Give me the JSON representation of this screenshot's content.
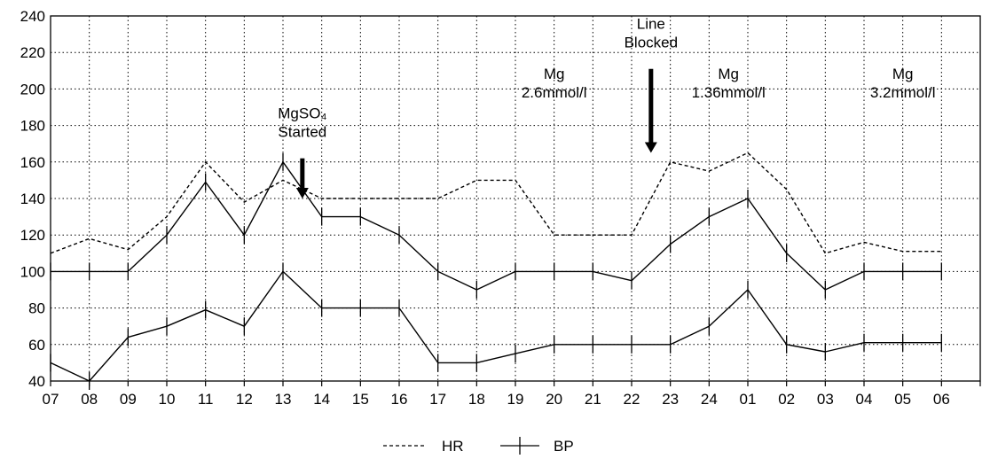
{
  "chart_data": {
    "type": "line",
    "categories": [
      "07",
      "08",
      "09",
      "10",
      "11",
      "12",
      "13",
      "14",
      "15",
      "16",
      "17",
      "18",
      "19",
      "20",
      "21",
      "22",
      "23",
      "24",
      "01",
      "02",
      "03",
      "04",
      "05",
      "06"
    ],
    "ylim": [
      40,
      240
    ],
    "y_ticks": [
      "40",
      "60",
      "80",
      "100",
      "120",
      "140",
      "160",
      "180",
      "200",
      "220",
      "240"
    ],
    "grid": true,
    "legend_position": "bottom-center",
    "series": [
      {
        "name": "HR",
        "style": "dashed",
        "x": [
          "07",
          "08",
          "09",
          "10",
          "11",
          "12",
          "13",
          "14",
          "15",
          "16",
          "17",
          "18",
          "19",
          "20",
          "21",
          "22",
          "23",
          "24",
          "01",
          "02",
          "03",
          "04",
          "05",
          "06"
        ],
        "values": [
          110,
          118,
          112,
          130,
          160,
          138,
          150,
          140,
          140,
          140,
          140,
          150,
          150,
          120,
          120,
          120,
          160,
          155,
          165,
          145,
          110,
          116,
          111,
          111
        ]
      },
      {
        "name": "BP",
        "style": "solid-with-crossbars",
        "x": [
          "07",
          "08",
          "09",
          "10",
          "11",
          "12",
          "13",
          "14",
          "15",
          "16",
          "17",
          "18",
          "19",
          "20",
          "21",
          "22",
          "23",
          "24",
          "01",
          "02",
          "03",
          "04",
          "05",
          "06"
        ],
        "values": [
          100,
          100,
          100,
          120,
          149,
          120,
          160,
          130,
          130,
          120,
          100,
          90,
          100,
          100,
          100,
          95,
          115,
          130,
          140,
          110,
          90,
          100,
          100,
          100
        ]
      },
      {
        "name": "BP",
        "style": "solid-with-crossbars",
        "x": [
          "07",
          "08",
          "09",
          "10",
          "11",
          "12",
          "13",
          "14",
          "15",
          "16",
          "17",
          "18",
          "19",
          "20",
          "21",
          "22",
          "23",
          "24",
          "01",
          "02",
          "03",
          "04",
          "05",
          "06"
        ],
        "values": [
          50,
          40,
          64,
          70,
          79,
          70,
          100,
          80,
          80,
          80,
          50,
          50,
          55,
          60,
          60,
          60,
          60,
          70,
          90,
          60,
          56,
          61,
          61,
          61
        ]
      }
    ],
    "annotations": [
      {
        "lines": [
          "MgSO₄",
          "Started"
        ],
        "x": "13",
        "x_offset": 0.5,
        "arrow": true,
        "arrow_from_y": 162,
        "arrow_to_y": 140
      },
      {
        "lines": [
          "Mg",
          "2.6mmol/l"
        ],
        "x": "20",
        "x_offset": 0.0,
        "arrow": false
      },
      {
        "lines": [
          "Line",
          "Blocked"
        ],
        "x": "22",
        "x_offset": 0.5,
        "arrow": true,
        "arrow_from_y": 211,
        "arrow_to_y": 165
      },
      {
        "lines": [
          "Mg",
          "1.36mmol/l"
        ],
        "x": "24",
        "x_offset": 0.5,
        "arrow": false
      },
      {
        "lines": [
          "Mg",
          "3.2mmol/l"
        ],
        "x": "05",
        "x_offset": 0.0,
        "arrow": false
      }
    ]
  }
}
